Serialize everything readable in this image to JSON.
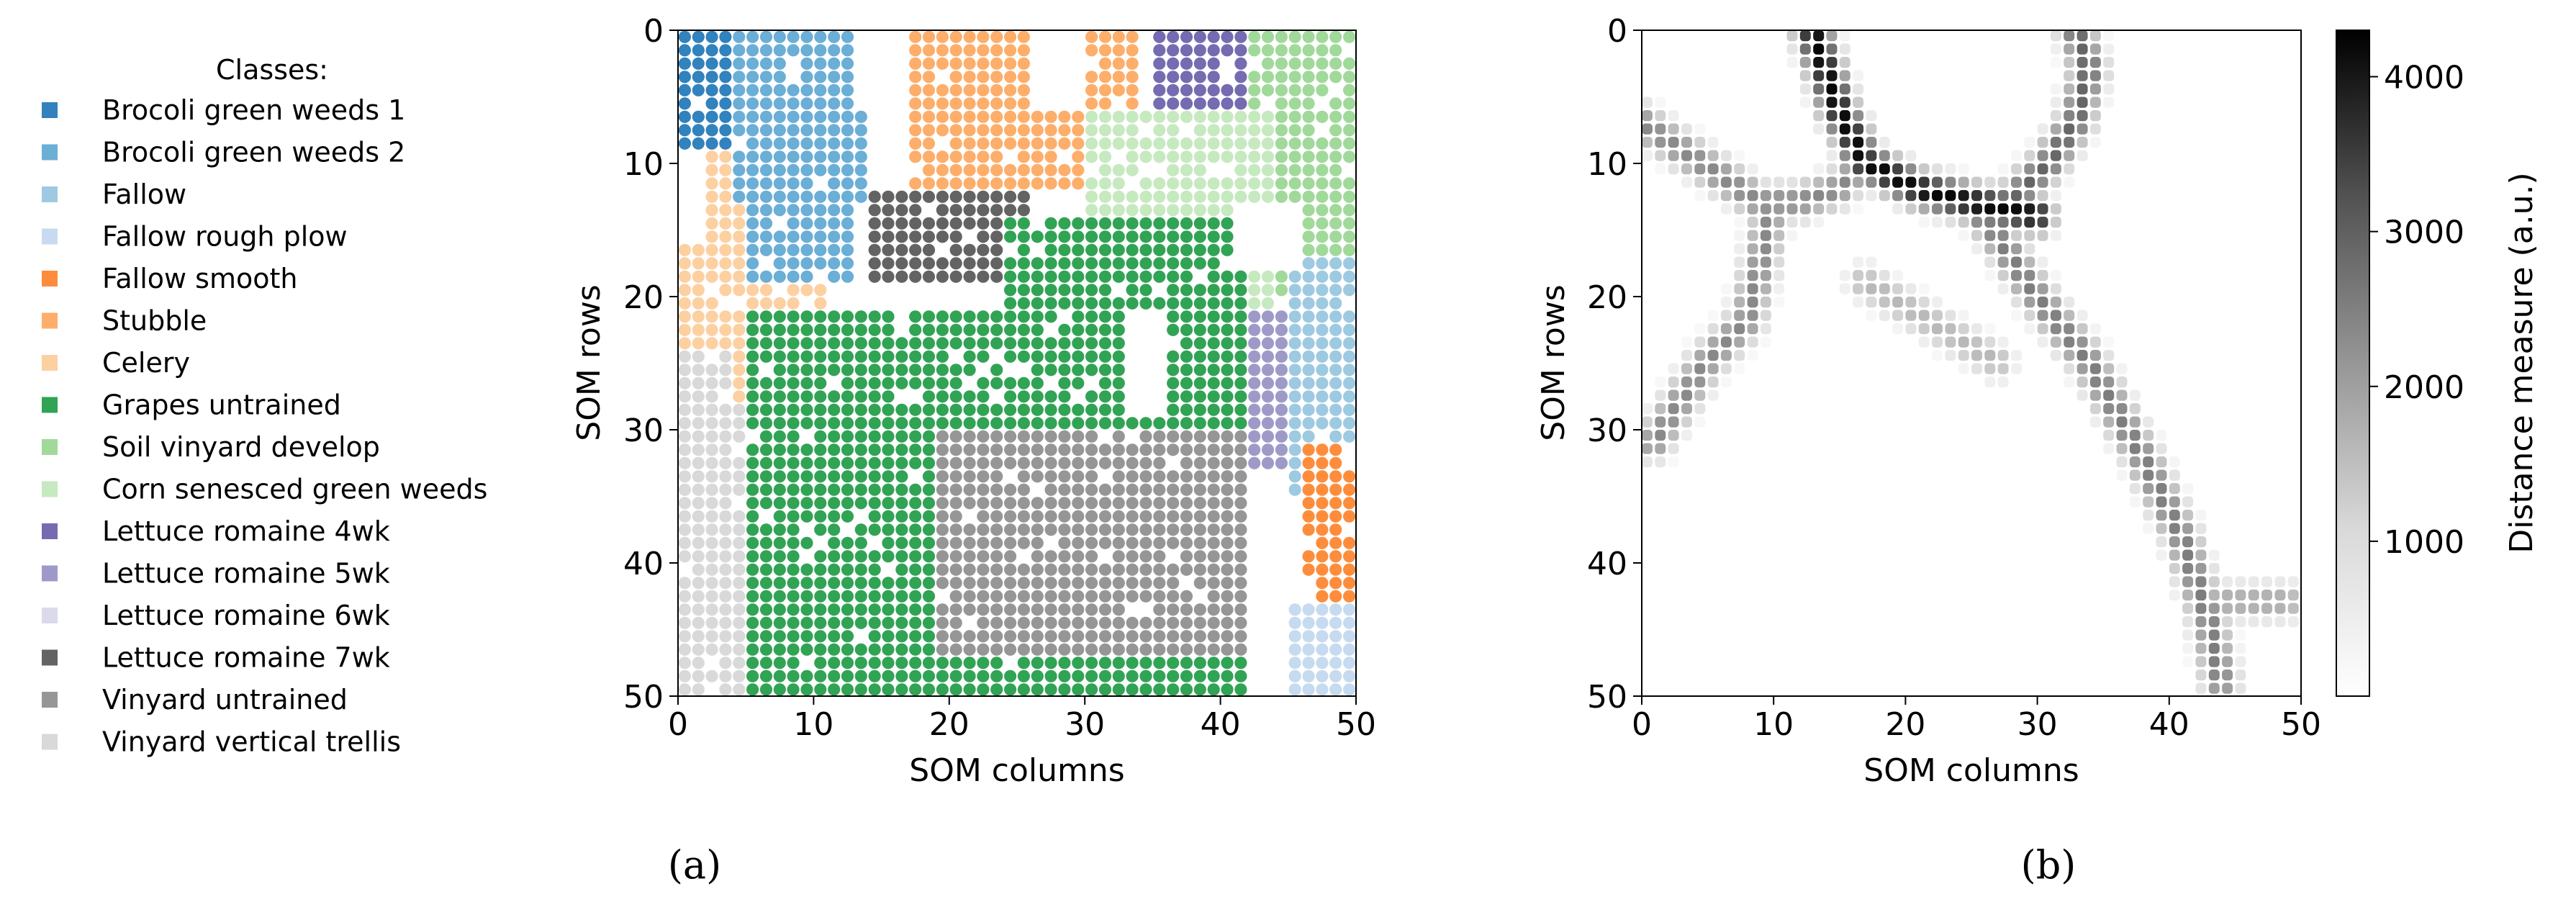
{
  "chart_data": [
    {
      "id": "a",
      "type": "scatter",
      "caption": "(a)",
      "xlabel": "SOM columns",
      "ylabel": "SOM rows",
      "xlim": [
        0,
        50
      ],
      "ylim": [
        50,
        0
      ],
      "xticks": [
        "0",
        "10",
        "20",
        "30",
        "40",
        "50"
      ],
      "yticks": [
        "0",
        "10",
        "20",
        "30",
        "40",
        "50"
      ],
      "legend": {
        "title": "Classes:",
        "placement": "left",
        "entries": [
          {
            "name": "Brocoli green weeds 1",
            "color": "#3182bd"
          },
          {
            "name": "Brocoli green weeds 2",
            "color": "#6baed6"
          },
          {
            "name": "Fallow",
            "color": "#9ecae1"
          },
          {
            "name": "Fallow rough plow",
            "color": "#c6dbef"
          },
          {
            "name": "Fallow smooth",
            "color": "#fd8d3c"
          },
          {
            "name": "Stubble",
            "color": "#fdae6b"
          },
          {
            "name": "Celery",
            "color": "#fdd0a2"
          },
          {
            "name": "Grapes untrained",
            "color": "#31a354"
          },
          {
            "name": "Soil vinyard develop",
            "color": "#a1d99b"
          },
          {
            "name": "Corn senesced green weeds",
            "color": "#c7e9c0"
          },
          {
            "name": "Lettuce romaine 4wk",
            "color": "#756bb1"
          },
          {
            "name": "Lettuce romaine 5wk",
            "color": "#9e9ac8"
          },
          {
            "name": "Lettuce romaine 6wk",
            "color": "#dadaeb"
          },
          {
            "name": "Lettuce romaine 7wk",
            "color": "#636363"
          },
          {
            "name": "Vinyard untrained",
            "color": "#969696"
          },
          {
            "name": "Vinyard vertical trellis",
            "color": "#d9d9d9"
          }
        ]
      },
      "regions": [
        {
          "class": "Vinyard vertical trellis",
          "col": [
            0.5,
            8
          ],
          "row": [
            10,
            50
          ]
        },
        {
          "class": "Celery",
          "col": [
            0.5,
            8
          ],
          "row": [
            9,
            24
          ]
        },
        {
          "class": "Celery",
          "col": [
            4,
            11
          ],
          "row": [
            14,
            28
          ]
        },
        {
          "class": "Brocoli green weeds 1",
          "col": [
            0.5,
            4
          ],
          "row": [
            0.5,
            9
          ]
        },
        {
          "class": "Brocoli green weeds 2",
          "col": [
            4,
            14
          ],
          "row": [
            0.5,
            13
          ]
        },
        {
          "class": "Brocoli green weeds 2",
          "col": [
            5,
            13
          ],
          "row": [
            9,
            19
          ]
        },
        {
          "class": "Stubble",
          "col": [
            17,
            34
          ],
          "row": [
            0.5,
            12
          ]
        },
        {
          "class": "Lettuce romaine 7wk",
          "col": [
            14,
            26
          ],
          "row": [
            12,
            19
          ]
        },
        {
          "class": "Soil vinyard develop",
          "col": [
            36,
            50
          ],
          "row": [
            0.5,
            20
          ]
        },
        {
          "class": "Lettuce romaine 4wk",
          "col": [
            35,
            42
          ],
          "row": [
            0.5,
            12
          ]
        },
        {
          "class": "Corn senesced green weeds",
          "col": [
            30,
            44
          ],
          "row": [
            6,
            32
          ]
        },
        {
          "class": "Lettuce romaine 6wk",
          "col": [
            27,
            34
          ],
          "row": [
            15,
            25
          ]
        },
        {
          "class": "Lettuce romaine 5wk",
          "col": [
            36,
            46
          ],
          "row": [
            21,
            33
          ]
        },
        {
          "class": "Fallow",
          "col": [
            45,
            50
          ],
          "row": [
            17,
            35
          ]
        },
        {
          "class": "Fallow smooth",
          "col": [
            46,
            50
          ],
          "row": [
            31,
            43
          ]
        },
        {
          "class": "Fallow rough plow",
          "col": [
            45,
            50
          ],
          "row": [
            43,
            50
          ]
        },
        {
          "class": "Grapes untrained",
          "col": [
            5,
            29
          ],
          "row": [
            21,
            50
          ]
        },
        {
          "class": "Grapes untrained",
          "col": [
            24,
            42
          ],
          "row": [
            14,
            50
          ]
        },
        {
          "class": "Vinyard untrained",
          "col": [
            19,
            42
          ],
          "row": [
            30,
            47
          ]
        }
      ]
    },
    {
      "id": "b",
      "type": "heatmap",
      "caption": "(b)",
      "xlabel": "SOM columns",
      "ylabel": "SOM rows",
      "xlim": [
        0,
        50
      ],
      "ylim": [
        50,
        0
      ],
      "xticks": [
        "0",
        "10",
        "20",
        "30",
        "40",
        "50"
      ],
      "yticks": [
        "0",
        "10",
        "20",
        "30",
        "40",
        "50"
      ],
      "colorbar": {
        "label": "Distance measure (a.u.)",
        "range": [
          0,
          4300
        ],
        "ticks": [
          "1000",
          "2000",
          "3000",
          "4000"
        ],
        "colormap": "Greys"
      },
      "ridges": [
        {
          "points": [
            [
              13,
              0
            ],
            [
              14,
              3
            ],
            [
              15,
              6
            ],
            [
              17,
              10
            ],
            [
              21,
              12
            ],
            [
              25,
              13
            ],
            [
              30,
              14
            ]
          ],
          "peak": 4200
        },
        {
          "points": [
            [
              33,
              0
            ],
            [
              34,
              3
            ],
            [
              33,
              7
            ],
            [
              31,
              10
            ],
            [
              28,
              13
            ],
            [
              26,
              14
            ]
          ],
          "peak": 2600
        },
        {
          "points": [
            [
              0,
              7
            ],
            [
              3,
              9
            ],
            [
              6,
              11
            ],
            [
              9,
              13
            ],
            [
              12,
              13
            ],
            [
              15,
              12
            ],
            [
              17,
              10
            ]
          ],
          "peak": 2000
        },
        {
          "points": [
            [
              10,
              13
            ],
            [
              9,
              18
            ],
            [
              8,
              22
            ],
            [
              5,
              25
            ],
            [
              3,
              28
            ],
            [
              1,
              31
            ]
          ],
          "peak": 2000
        },
        {
          "points": [
            [
              26,
              14
            ],
            [
              30,
              20
            ],
            [
              34,
              25
            ],
            [
              38,
              32
            ],
            [
              41,
              38
            ],
            [
              43,
              44
            ],
            [
              44,
              49
            ]
          ],
          "peak": 2200
        },
        {
          "points": [
            [
              44,
              43
            ],
            [
              46,
              43
            ],
            [
              49,
              43
            ]
          ],
          "peak": 1500
        },
        {
          "points": [
            [
              17,
              19
            ],
            [
              22,
              22
            ],
            [
              27,
              25
            ]
          ],
          "peak": 1200
        }
      ]
    }
  ]
}
